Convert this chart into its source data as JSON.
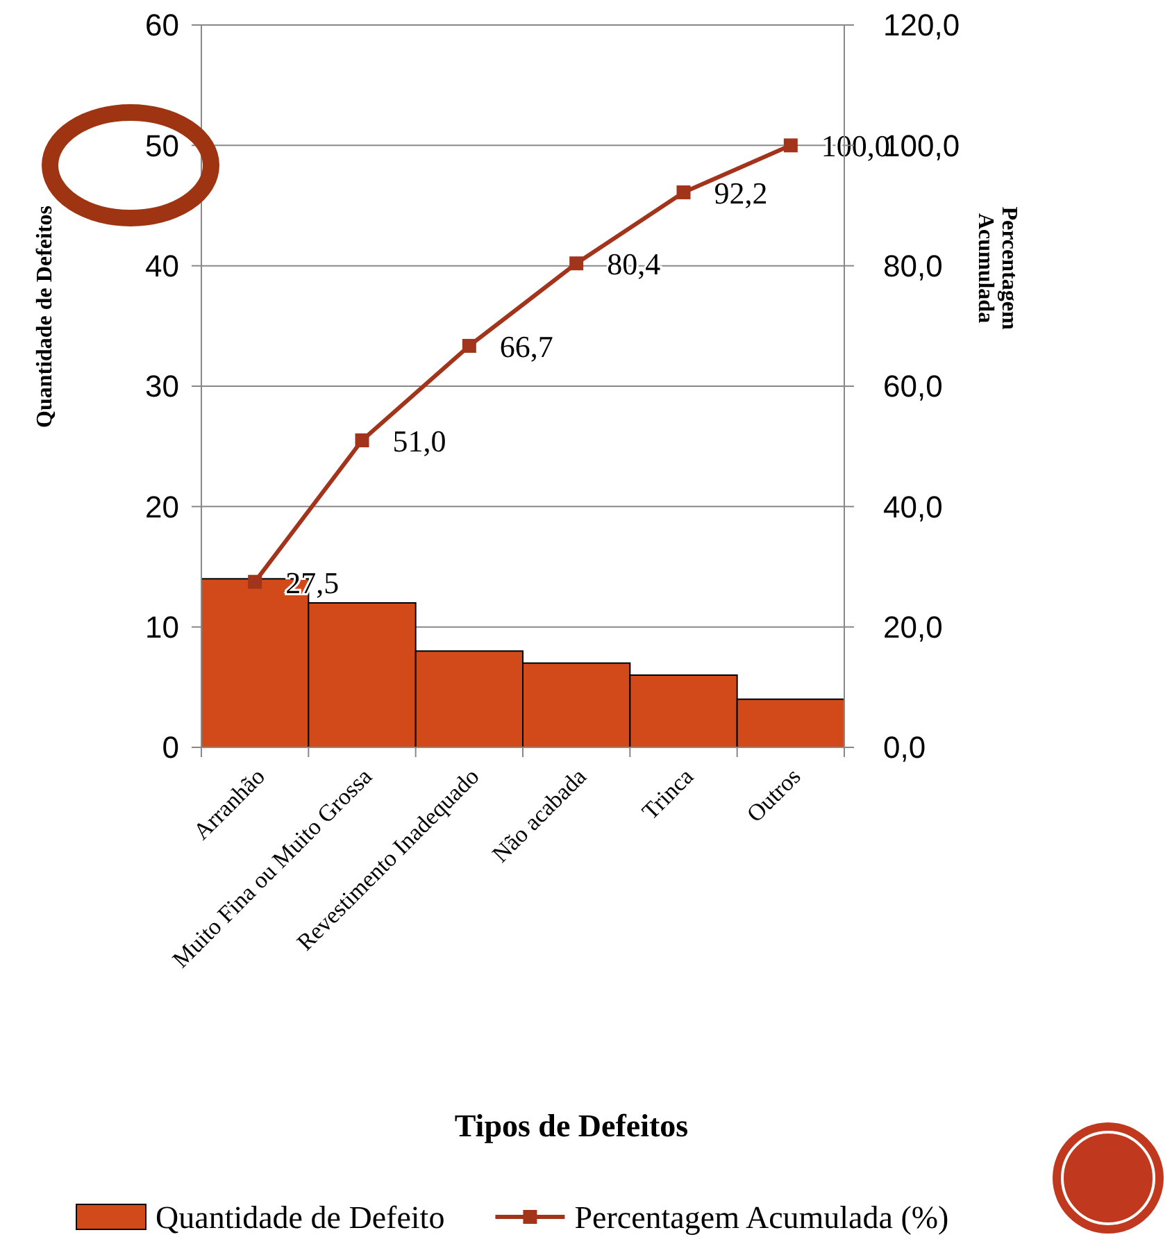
{
  "chart_data": {
    "type": "bar",
    "xlabel": "Tipos de Defeitos",
    "ylabel": "Quantidade de Defeitos",
    "y2label": "Percentagem Acumulada",
    "categories": [
      "Arranhão",
      "Muito Fina ou Muito Grossa",
      "Revestimento Inadequado",
      "Não acabada",
      "Trinca",
      "Outros"
    ],
    "series": [
      {
        "name": "Quantidade de Defeito",
        "color": "#d24a1a",
        "values": [
          14,
          12,
          8,
          7,
          6,
          4
        ]
      },
      {
        "name": "Percentagem Acumulada (%)",
        "type": "line",
        "axis": "y2",
        "color": "#a3341c",
        "marker": "square",
        "values": [
          27.5,
          51.0,
          66.7,
          80.4,
          92.2,
          100.0
        ],
        "value_labels": [
          "27,5",
          "51,0",
          "66,7",
          "80,4",
          "92,2",
          "100,0"
        ]
      }
    ],
    "ylim": [
      0,
      60
    ],
    "yticks": [
      0,
      10,
      20,
      30,
      40,
      50,
      60
    ],
    "y2lim": [
      0,
      120
    ],
    "y2ticks": [
      {
        "value": 0,
        "label": "0,0"
      },
      {
        "value": 20,
        "label": "20,0"
      },
      {
        "value": 40,
        "label": "40,0"
      },
      {
        "value": 60,
        "label": "60,0"
      },
      {
        "value": 80,
        "label": "80,0"
      },
      {
        "value": 100,
        "label": "100,0"
      },
      {
        "value": 120,
        "label": "120,0"
      }
    ],
    "grid": "y",
    "legend": "bottom"
  }
}
